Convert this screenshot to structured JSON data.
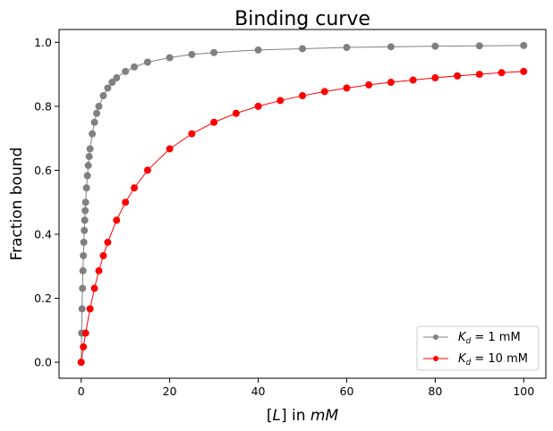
{
  "chart_data": {
    "type": "line",
    "title": "Binding curve",
    "xlabel": "[L] in mM",
    "xlabel_parts": {
      "pre": "[",
      "var": "L",
      "mid": "] in ",
      "unit": "mM"
    },
    "ylabel": "Fraction bound",
    "xlim": [
      -5,
      105
    ],
    "ylim": [
      -0.05,
      1.04
    ],
    "xticks": [
      0,
      20,
      40,
      60,
      80,
      100
    ],
    "yticks": [
      0.0,
      0.2,
      0.4,
      0.6,
      0.8,
      1.0
    ],
    "xtick_labels": [
      "0",
      "20",
      "40",
      "60",
      "80",
      "100"
    ],
    "ytick_labels": [
      "0.0",
      "0.2",
      "0.4",
      "0.6",
      "0.8",
      "1.0"
    ],
    "grid": false,
    "legend_position": "bottom-right",
    "series": [
      {
        "name": "K_d = 1 mM",
        "label_parts": {
          "sym": "K",
          "sub": "d",
          "rest": " = 1 mM"
        },
        "color": "#808080",
        "x": [
          0,
          0.1,
          0.2,
          0.3,
          0.4,
          0.5,
          0.6,
          0.7,
          0.8,
          0.9,
          1,
          1.2,
          1.4,
          1.6,
          1.8,
          2,
          2.5,
          3,
          3.5,
          4,
          5,
          6,
          7,
          8,
          10,
          12,
          15,
          20,
          25,
          30,
          40,
          50,
          60,
          70,
          80,
          90,
          100
        ],
        "y": [
          0.0,
          0.091,
          0.167,
          0.231,
          0.286,
          0.333,
          0.375,
          0.412,
          0.444,
          0.474,
          0.5,
          0.545,
          0.583,
          0.615,
          0.643,
          0.667,
          0.714,
          0.75,
          0.778,
          0.8,
          0.833,
          0.857,
          0.875,
          0.889,
          0.909,
          0.923,
          0.938,
          0.952,
          0.962,
          0.968,
          0.976,
          0.98,
          0.984,
          0.986,
          0.988,
          0.989,
          0.99
        ]
      },
      {
        "name": "K_d = 10 mM",
        "label_parts": {
          "sym": "K",
          "sub": "d",
          "rest": " = 10 mM"
        },
        "color": "#ff0000",
        "x": [
          0,
          0.5,
          1,
          2,
          3,
          4,
          5,
          6,
          8,
          10,
          12,
          15,
          20,
          25,
          30,
          35,
          40,
          45,
          50,
          55,
          60,
          65,
          70,
          75,
          80,
          85,
          90,
          95,
          100
        ],
        "y": [
          0.0,
          0.048,
          0.091,
          0.167,
          0.231,
          0.286,
          0.333,
          0.375,
          0.444,
          0.5,
          0.545,
          0.6,
          0.667,
          0.714,
          0.75,
          0.778,
          0.8,
          0.818,
          0.833,
          0.846,
          0.857,
          0.867,
          0.875,
          0.882,
          0.889,
          0.895,
          0.9,
          0.905,
          0.909
        ]
      }
    ]
  }
}
